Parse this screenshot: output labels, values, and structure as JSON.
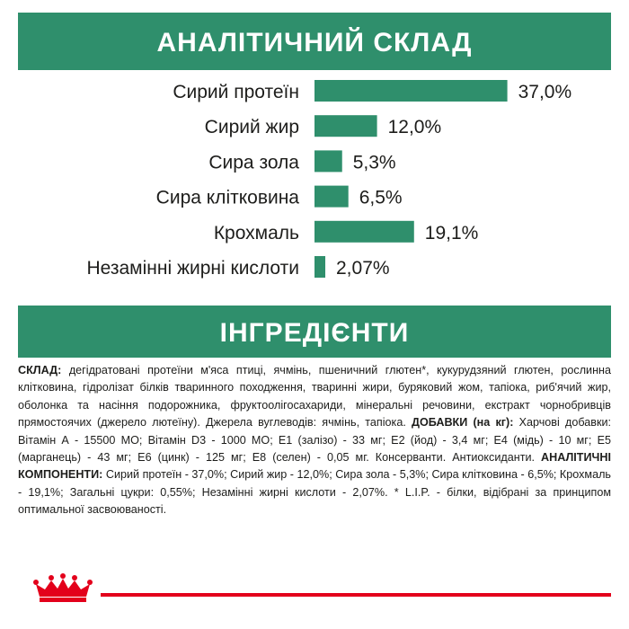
{
  "chart_data": {
    "type": "bar",
    "orientation": "horizontal",
    "title": "АНАЛІТИЧНИЙ СКЛАД",
    "color": "#2f8f6c",
    "categories": [
      "Сирий протеїн",
      "Сирий жир",
      "Сира зола",
      "Сира клітковина",
      "Крохмаль",
      "Незамінні жирні кислоти"
    ],
    "values": [
      37.0,
      12.0,
      5.3,
      6.5,
      19.1,
      2.07
    ],
    "value_labels": [
      "37,0%",
      "12,0%",
      "5,3%",
      "6,5%",
      "19,1%",
      "2,07%"
    ]
  },
  "ingredients": {
    "title": "ІНГРЕДІЄНТИ",
    "segments": [
      {
        "bold": true,
        "text": "СКЛАД:"
      },
      {
        "bold": false,
        "text": " дегідратовані протеїни м'яса птиці, ячмінь, пшеничний глютен*, кукурудзяний глютен, рослинна клітковина, гідролізат білків тваринного походження, тваринні жири, буряковий жом, тапіока, риб'ячий жир, оболонка та насіння подорожника, фруктоолігосахариди, мінеральні речовини, екстракт чорнобривців прямостоячих (джерело лютеїну). Джерела вуглеводів: ячмінь, тапіока. "
      },
      {
        "bold": true,
        "text": "ДОБАВКИ (на кг):"
      },
      {
        "bold": false,
        "text": " Харчові добавки: Вітамін А - 15500 МО; Вітамін D3 - 1000 МО; E1 (залізо) - 33 мг; E2 (йод) - 3,4 мг; E4 (мідь) - 10 мг; E5 (марганець) - 43 мг; E6 (цинк) - 125 мг; E8 (селен) - 0,05 мг. Консерванти. Антиоксиданти. "
      },
      {
        "bold": true,
        "text": "АНАЛІТИЧНІ КОМПОНЕНТИ:"
      },
      {
        "bold": false,
        "text": " Сирий протеїн - 37,0%; Сирий жир - 12,0%; Сира зола - 5,3%; Сира клітковина - 6,5%; Крохмаль - 19,1%; Загальні цукри: 0,55%; Незамінні жирні кислоти - 2,07%. * L.I.P. - білки, відібрані за принципом оптимальної засвоюваності."
      }
    ]
  }
}
